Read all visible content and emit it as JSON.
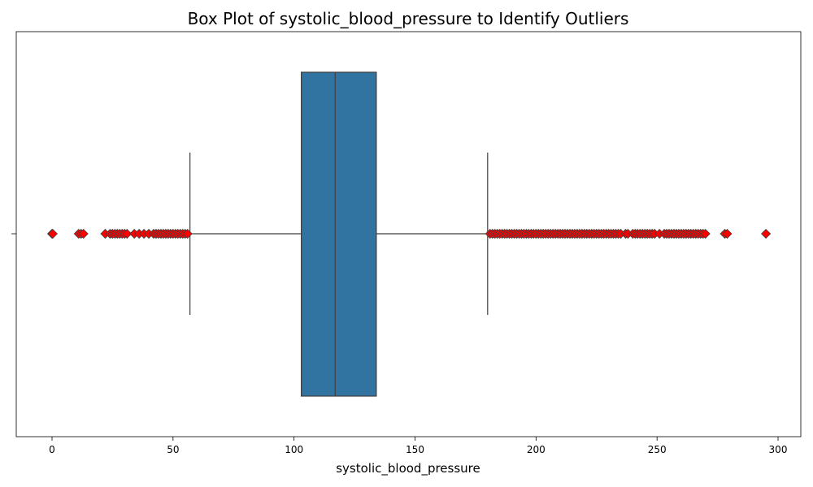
{
  "chart_data": {
    "type": "box",
    "title": "Box Plot of systolic_blood_pressure to Identify Outliers",
    "xlabel": "systolic_blood_pressure",
    "ylabel": "",
    "xlim": [
      -15,
      310
    ],
    "xticks": [
      0,
      50,
      100,
      150,
      200,
      250,
      300
    ],
    "grid": false,
    "orientation": "horizontal",
    "box": {
      "whisker_low": 57,
      "q1": 103,
      "median": 117,
      "q3": 134,
      "whisker_high": 180
    },
    "outliers": [
      0,
      0.3,
      11,
      12,
      13,
      22,
      24,
      25,
      26,
      27,
      28,
      29,
      30,
      31,
      34,
      36,
      38,
      40,
      42,
      43,
      44,
      45,
      46,
      47,
      48,
      49,
      50,
      51,
      52,
      53,
      54,
      55,
      56,
      181,
      182,
      183,
      184,
      185,
      186,
      187,
      188,
      189,
      190,
      191,
      192,
      193,
      194,
      195,
      196,
      197,
      198,
      199,
      200,
      201,
      202,
      203,
      204,
      205,
      206,
      207,
      208,
      209,
      210,
      211,
      212,
      213,
      214,
      215,
      216,
      217,
      218,
      219,
      220,
      221,
      222,
      223,
      224,
      225,
      226,
      227,
      228,
      229,
      230,
      231,
      232,
      233,
      234,
      235,
      237,
      238,
      240,
      241,
      242,
      243,
      244,
      245,
      246,
      247,
      248,
      249,
      251,
      253,
      254,
      255,
      256,
      257,
      258,
      259,
      260,
      261,
      262,
      263,
      264,
      265,
      266,
      267,
      268,
      269,
      270,
      278,
      279,
      295
    ],
    "box_color": "#3274a1",
    "outlier_color": "#ff0000"
  }
}
